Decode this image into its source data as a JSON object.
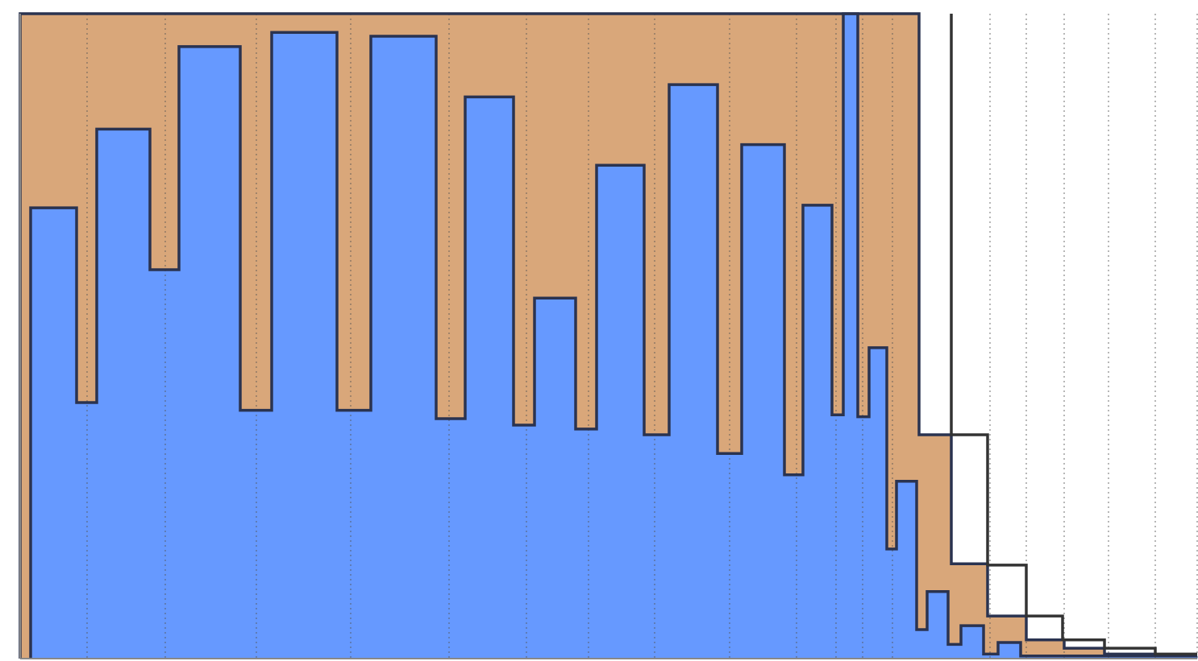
{
  "chart_data": {
    "type": "histogram",
    "xlim": [
      0,
      1460
    ],
    "ylim": [
      0,
      100
    ],
    "xticks": [
      83,
      180,
      293,
      410,
      532,
      628,
      705,
      787,
      880,
      963,
      1012,
      1045,
      1082,
      1203,
      1248,
      1295,
      1350,
      1408,
      1460
    ],
    "grid": true,
    "series": [
      {
        "color": "#d9a77a",
        "fill": true,
        "bins": [
          0,
          1115,
          1155,
          1200,
          1248,
          1295,
          1345,
          1408,
          1460
        ],
        "values": [
          100,
          34.7,
          14.7,
          6.6,
          2.9,
          1.6,
          0.7,
          0.4
        ]
      },
      {
        "color": "#6699ff",
        "fill": true,
        "bins": [
          13,
          70,
          95,
          161,
          197,
          273,
          312,
          393,
          435,
          516,
          552,
          612,
          638,
          689,
          715,
          774,
          805,
          865,
          895,
          948,
          971,
          1007,
          1021,
          1039,
          1053,
          1075,
          1087,
          1112,
          1125,
          1151,
          1167,
          1195,
          1213,
          1241,
          1460
        ],
        "values": [
          69.9,
          39.7,
          82.1,
          60.3,
          94.9,
          38.5,
          97.1,
          38.5,
          96.5,
          37.2,
          87.1,
          36.2,
          55.9,
          35.6,
          76.5,
          34.7,
          89.0,
          31.8,
          79.7,
          28.5,
          70.3,
          37.8,
          100,
          37.5,
          48.2,
          17.0,
          27.5,
          4.5,
          10.4,
          2.2,
          5.1,
          0.7,
          2.5,
          0.4
        ]
      },
      {
        "color": "#333333",
        "fill": false,
        "bins": [
          1155,
          1200,
          1248,
          1293,
          1345,
          1408,
          1460
        ],
        "values": [
          34.7,
          14.5,
          6.6,
          2.9,
          1.6,
          0.7
        ]
      }
    ]
  }
}
